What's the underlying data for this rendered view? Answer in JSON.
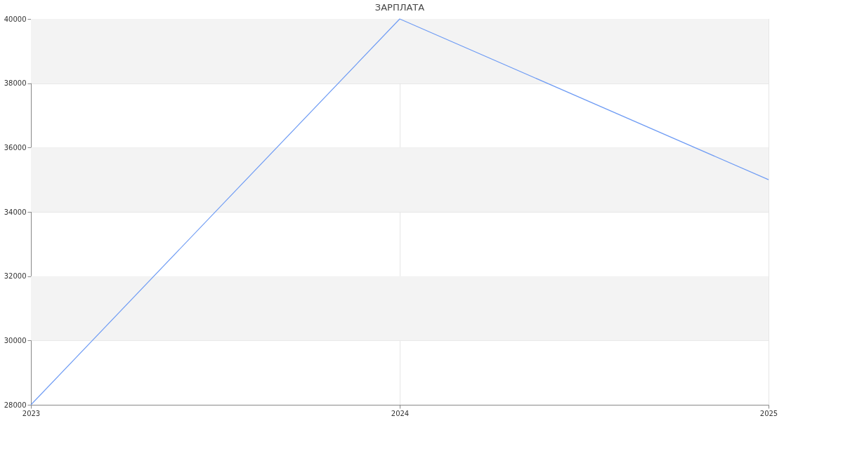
{
  "chart_data": {
    "type": "line",
    "title": "ЗАРПЛАТА",
    "x": [
      2023,
      2024,
      2025
    ],
    "series": [
      {
        "color": "#6f9cf4",
        "values": [
          28000,
          40000,
          35000
        ]
      }
    ],
    "xlim": [
      2023,
      2025
    ],
    "xticks": [
      2023,
      2024,
      2025
    ],
    "ylim": [
      28000,
      40000
    ],
    "yticks": [
      28000,
      30000,
      32000,
      34000,
      36000,
      38000,
      40000
    ],
    "bands": [
      {
        "axis": "y",
        "from": 30000,
        "to": 32000,
        "color": "#f3f3f3"
      },
      {
        "axis": "y",
        "from": 34000,
        "to": 36000,
        "color": "#f3f3f3"
      },
      {
        "axis": "y",
        "from": 38000,
        "to": 40000,
        "color": "#f3f3f3"
      }
    ],
    "grid": true,
    "marker": "none",
    "line_style": "solid"
  }
}
